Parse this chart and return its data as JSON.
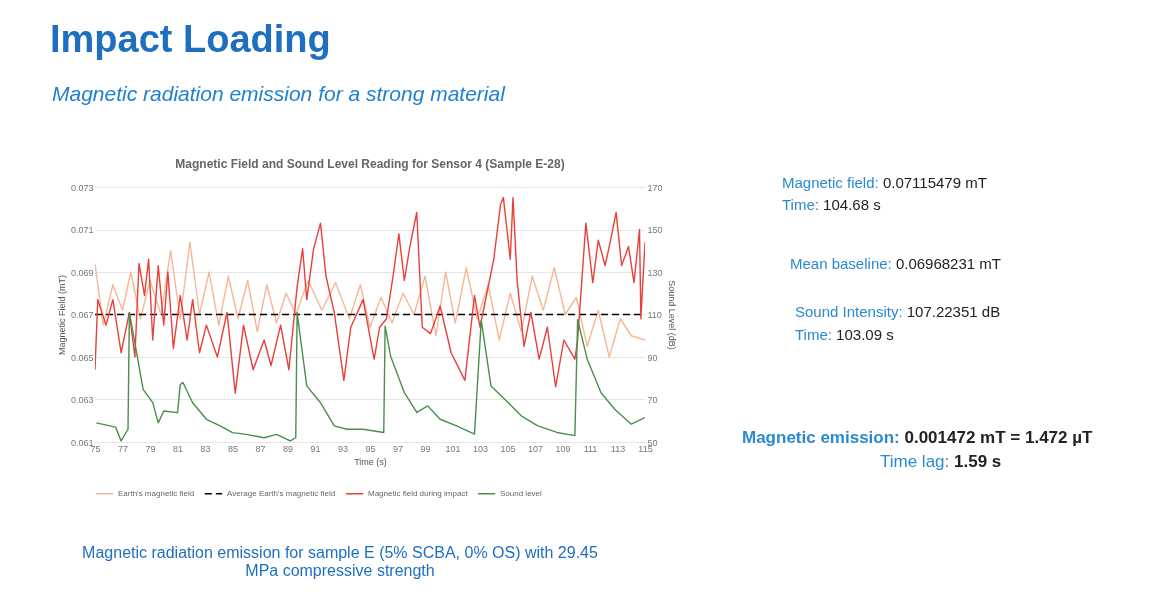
{
  "chart_data": {
    "type": "line",
    "title": "Impact Loading",
    "subtitle": "Magnetic radiation emission for a strong material",
    "xlabel": "Time (s)",
    "ylabel": "Magnetic Field (mT)",
    "y2label": "Sound Level (dB)",
    "annotations": [
      "Magnetic Field and Sound Level Reading for Sensor 4 (Sample E-28)",
      "Magnetic field: 0.07115479 mT",
      "Time: 104.68 s",
      "Mean baseline: 0.06968231 mT",
      "Sound Intensity: 107.22351 dB",
      "Time: 103.09 s",
      "Magnetic emission: 0.001472 mT = 1.472 µT",
      "Time lag: 1.59 s",
      "Magnetic radiation emission for sample E (5% SCBA, 0% OS) with 29.45 MPa compressive strength"
    ],
    "xlim": [
      75,
      115
    ],
    "xticks": [
      75,
      77,
      79,
      81,
      83,
      85,
      87,
      89,
      91,
      93,
      95,
      97,
      99,
      101,
      103,
      105,
      107,
      109,
      111,
      113,
      115
    ],
    "ylim": [
      0.061,
      0.073
    ],
    "yticks": [
      0.061,
      0.063,
      0.065,
      0.067,
      0.069,
      0.071,
      0.073
    ],
    "y2lim": [
      50,
      170
    ],
    "y2ticks": [
      50,
      70,
      90,
      110,
      130,
      150,
      170
    ],
    "grid": "y",
    "legend": "bottom",
    "series": [
      {
        "name": "Earth's magnetic field",
        "color": "#f5b896",
        "x": [
          75.0,
          75.6,
          76.3,
          77.0,
          77.6,
          78.3,
          79.0,
          79.8,
          80.5,
          81.2,
          81.9,
          82.6,
          83.3,
          84.0,
          84.7,
          85.4,
          86.1,
          86.8,
          87.5,
          88.2,
          88.9,
          89.6,
          90.5,
          91.5,
          92.5,
          93.5,
          94.3,
          95.0,
          95.8,
          96.6,
          97.4,
          98.2,
          99.0,
          99.8,
          100.5,
          101.2,
          102.0,
          102.8,
          103.6,
          104.4,
          105.2,
          106.0,
          106.8,
          107.6,
          108.4,
          109.2,
          110.0,
          110.8,
          111.6,
          112.4,
          113.2,
          114.0,
          115.0
        ],
        "values": [
          0.0694,
          0.0665,
          0.0684,
          0.0672,
          0.069,
          0.0668,
          0.0686,
          0.067,
          0.07,
          0.0668,
          0.0704,
          0.067,
          0.069,
          0.0665,
          0.0688,
          0.0668,
          0.0686,
          0.0662,
          0.0684,
          0.0666,
          0.068,
          0.067,
          0.0686,
          0.0672,
          0.0685,
          0.0668,
          0.0684,
          0.0664,
          0.0678,
          0.0666,
          0.068,
          0.067,
          0.0688,
          0.066,
          0.069,
          0.0666,
          0.0692,
          0.0668,
          0.0684,
          0.0658,
          0.068,
          0.0662,
          0.0688,
          0.0672,
          0.0692,
          0.067,
          0.0678,
          0.0655,
          0.0672,
          0.065,
          0.0668,
          0.066,
          0.0658
        ]
      },
      {
        "name": "Average Earth's magnetic field",
        "color": "#000000",
        "line_style": "dashed",
        "x": [
          75,
          115
        ],
        "values": [
          0.067,
          0.067
        ]
      },
      {
        "name": "Magnetic field during impact",
        "color": "#e8403a",
        "x": [
          75.0,
          75.2,
          75.8,
          76.3,
          76.9,
          77.5,
          77.9,
          78.2,
          78.6,
          78.9,
          79.2,
          79.6,
          80.0,
          80.3,
          80.7,
          81.2,
          81.7,
          82.1,
          82.6,
          83.1,
          83.9,
          84.6,
          85.2,
          85.8,
          86.5,
          87.3,
          87.8,
          88.5,
          89.1,
          89.7,
          90.1,
          90.4,
          90.9,
          91.4,
          91.8,
          92.4,
          93.1,
          93.6,
          94.5,
          95.3,
          95.7,
          96.2,
          96.7,
          97.1,
          97.5,
          97.9,
          98.4,
          98.8,
          99.4,
          100.1,
          100.9,
          101.9,
          102.6,
          103.0,
          103.5,
          104.0,
          104.5,
          104.7,
          105.2,
          105.4,
          105.7,
          106.2,
          106.7,
          107.3,
          107.9,
          108.5,
          109.1,
          109.9,
          110.1,
          110.7,
          111.2,
          111.6,
          112.1,
          112.5,
          112.9,
          113.3,
          113.8,
          114.2,
          114.6,
          114.7,
          115.0
        ],
        "values": [
          0.0644,
          0.0677,
          0.0665,
          0.0677,
          0.0652,
          0.0671,
          0.065,
          0.0694,
          0.0679,
          0.0696,
          0.0658,
          0.0693,
          0.0665,
          0.069,
          0.0654,
          0.0679,
          0.0658,
          0.0677,
          0.0652,
          0.0665,
          0.065,
          0.0671,
          0.0633,
          0.0665,
          0.0644,
          0.0658,
          0.0646,
          0.0665,
          0.0644,
          0.0683,
          0.0701,
          0.0677,
          0.0701,
          0.0713,
          0.0688,
          0.0671,
          0.0639,
          0.0664,
          0.0677,
          0.0649,
          0.0664,
          0.0668,
          0.0689,
          0.0708,
          0.0686,
          0.0702,
          0.0718,
          0.0664,
          0.0661,
          0.0674,
          0.0652,
          0.0639,
          0.0679,
          0.0664,
          0.068,
          0.0696,
          0.0722,
          0.0725,
          0.0696,
          0.0725,
          0.0686,
          0.0655,
          0.0671,
          0.0649,
          0.0664,
          0.0636,
          0.0658,
          0.0649,
          0.0658,
          0.0713,
          0.0685,
          0.0705,
          0.0693,
          0.0705,
          0.0718,
          0.0693,
          0.0702,
          0.0685,
          0.071,
          0.0668,
          0.0704
        ]
      },
      {
        "name": "Sound level",
        "color": "#4a8f4a",
        "axis": "y2",
        "x": [
          75.1,
          76.5,
          76.9,
          77.4,
          77.5,
          77.9,
          78.5,
          79.2,
          79.6,
          80.0,
          81.0,
          81.2,
          81.4,
          82.1,
          83.1,
          84.1,
          85.0,
          86.0,
          87.3,
          88.2,
          89.2,
          89.6,
          89.7,
          90.4,
          91.4,
          92.4,
          93.3,
          94.5,
          96.0,
          96.1,
          96.5,
          97.5,
          98.4,
          99.2,
          100.1,
          101.3,
          102.6,
          103.09,
          103.8,
          104.8,
          106.0,
          107.2,
          108.6,
          109.9,
          110.1,
          110.8,
          111.8,
          112.8,
          114.0,
          115.0
        ],
        "values": [
          59,
          57,
          50.5,
          56,
          110.8,
          96.7,
          74.8,
          68.5,
          59,
          64.6,
          63.8,
          77,
          78,
          68.5,
          60.7,
          57.6,
          54.4,
          53.6,
          52,
          53.6,
          50.5,
          52,
          110.8,
          76.4,
          68.5,
          57.6,
          56,
          56,
          54.5,
          104.5,
          90.4,
          73.2,
          63.9,
          67,
          60.7,
          57.6,
          53.7,
          107.2,
          76.4,
          70.1,
          62.3,
          57.6,
          54.5,
          53,
          107.6,
          88.9,
          73.2,
          65.4,
          58.4,
          61.5
        ]
      }
    ]
  }
}
